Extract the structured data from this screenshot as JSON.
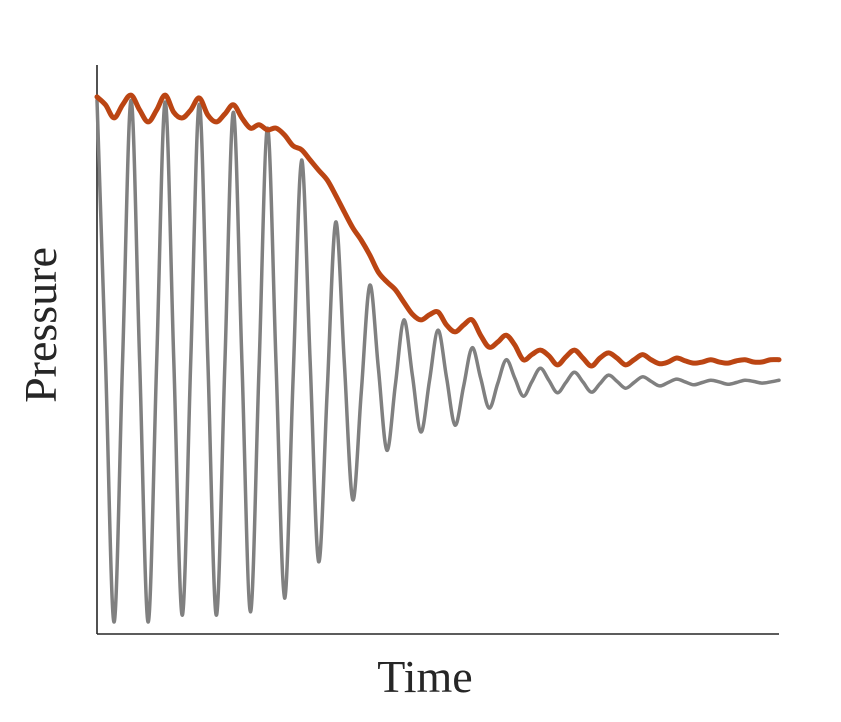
{
  "chart_data": {
    "type": "line",
    "xlabel": "Time",
    "ylabel": "Pressure",
    "xlim": [
      0,
      1
    ],
    "ylim": [
      0,
      1
    ],
    "x": [
      0,
      0.0125,
      0.025,
      0.0375,
      0.05,
      0.0625,
      0.075,
      0.0875,
      0.1,
      0.1125,
      0.125,
      0.1375,
      0.15,
      0.1625,
      0.175,
      0.1875,
      0.2,
      0.2125,
      0.225,
      0.2375,
      0.25,
      0.2625,
      0.275,
      0.2875,
      0.3,
      0.3125,
      0.325,
      0.3375,
      0.35,
      0.3625,
      0.375,
      0.3875,
      0.4,
      0.4125,
      0.425,
      0.4375,
      0.45,
      0.4625,
      0.475,
      0.4875,
      0.5,
      0.5125,
      0.525,
      0.5375,
      0.55,
      0.5625,
      0.575,
      0.5875,
      0.6,
      0.6125,
      0.625,
      0.6375,
      0.65,
      0.6625,
      0.675,
      0.6875,
      0.7,
      0.7125,
      0.725,
      0.7375,
      0.75,
      0.7625,
      0.775,
      0.7875,
      0.8,
      0.8125,
      0.825,
      0.8375,
      0.85,
      0.8625,
      0.875,
      0.8875,
      0.9,
      0.9125,
      0.925,
      0.9375,
      0.95,
      0.9625,
      0.975,
      0.9875,
      1
    ],
    "series": [
      {
        "color": "#808080",
        "width": 3.5,
        "values": [
          0.938,
          0.48,
          0.021,
          0.48,
          0.938,
          0.48,
          0.021,
          0.478,
          0.935,
          0.484,
          0.033,
          0.482,
          0.931,
          0.482,
          0.033,
          0.475,
          0.917,
          0.478,
          0.039,
          0.464,
          0.889,
          0.476,
          0.063,
          0.448,
          0.833,
          0.48,
          0.127,
          0.426,
          0.724,
          0.48,
          0.236,
          0.425,
          0.613,
          0.468,
          0.323,
          0.438,
          0.552,
          0.454,
          0.355,
          0.445,
          0.534,
          0.451,
          0.367,
          0.435,
          0.503,
          0.45,
          0.397,
          0.44,
          0.482,
          0.45,
          0.418,
          0.443,
          0.467,
          0.446,
          0.424,
          0.442,
          0.46,
          0.443,
          0.425,
          0.44,
          0.455,
          0.444,
          0.432,
          0.442,
          0.452,
          0.444,
          0.436,
          0.442,
          0.448,
          0.443,
          0.438,
          0.442,
          0.446,
          0.443,
          0.439,
          0.442,
          0.446,
          0.444,
          0.441,
          0.443,
          0.446
        ]
      },
      {
        "color": "#bb4513",
        "width": 5,
        "values": [
          0.944,
          0.93,
          0.907,
          0.93,
          0.947,
          0.921,
          0.9,
          0.921,
          0.947,
          0.917,
          0.907,
          0.921,
          0.942,
          0.912,
          0.9,
          0.914,
          0.93,
          0.907,
          0.889,
          0.895,
          0.886,
          0.889,
          0.877,
          0.858,
          0.851,
          0.833,
          0.815,
          0.798,
          0.771,
          0.742,
          0.714,
          0.692,
          0.666,
          0.636,
          0.619,
          0.605,
          0.583,
          0.562,
          0.552,
          0.561,
          0.566,
          0.543,
          0.531,
          0.543,
          0.552,
          0.525,
          0.504,
          0.513,
          0.525,
          0.508,
          0.482,
          0.491,
          0.499,
          0.489,
          0.473,
          0.487,
          0.499,
          0.485,
          0.471,
          0.485,
          0.494,
          0.485,
          0.473,
          0.482,
          0.491,
          0.482,
          0.475,
          0.478,
          0.485,
          0.48,
          0.476,
          0.478,
          0.482,
          0.478,
          0.476,
          0.48,
          0.482,
          0.478,
          0.478,
          0.482,
          0.482
        ]
      }
    ]
  }
}
